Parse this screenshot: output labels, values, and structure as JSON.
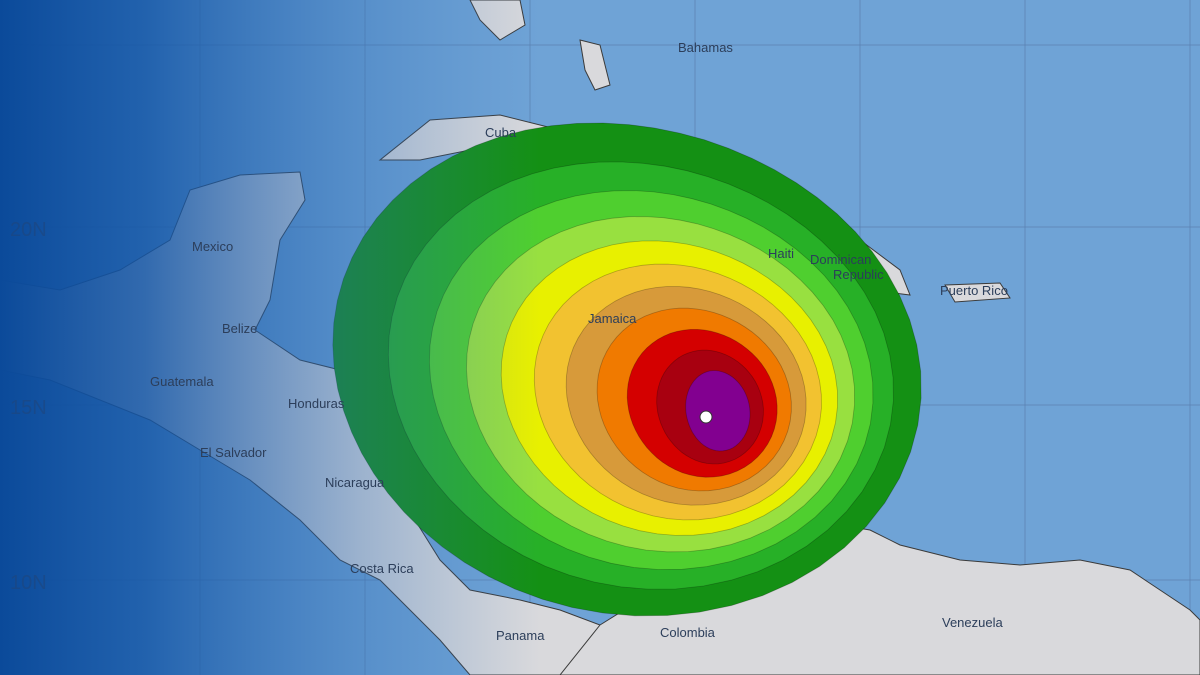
{
  "map": {
    "latitude_labels": [
      "20N",
      "15N",
      "10N"
    ],
    "place_labels": {
      "bahamas": "Bahamas",
      "cuba": "Cuba",
      "mexico": "Mexico",
      "belize": "Belize",
      "guatemala": "Guatemala",
      "honduras": "Honduras",
      "el_salvador": "El Salvador",
      "nicaragua": "Nicaragua",
      "costa_rica": "Costa Rica",
      "panama": "Panama",
      "colombia": "Colombia",
      "venezuela": "Venezuela",
      "jamaica": "Jamaica",
      "haiti": "Haiti",
      "dominican_republic_1": "Dominican",
      "dominican_republic_2": "Republic",
      "puerto_rico": "Puerto Rico"
    },
    "colors": {
      "ocean": "#6fa3d6",
      "land": "#d9d9dc",
      "overlay": "#0b4a9a",
      "storm_center": "#ffffff"
    },
    "wind_probability_bands": [
      "#149014",
      "#27b027",
      "#4fcf2f",
      "#98e040",
      "#e8f000",
      "#f2c230",
      "#d79a3a",
      "#f07a00",
      "#d40000",
      "#a80010",
      "#820090"
    ]
  }
}
